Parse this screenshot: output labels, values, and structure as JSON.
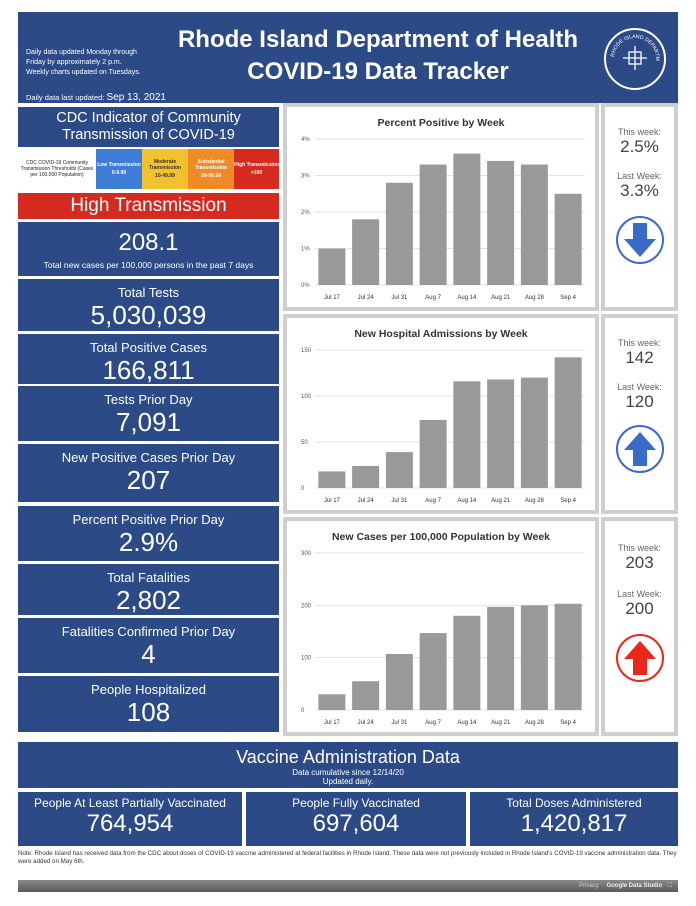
{
  "header": {
    "notes_line1": "Daily data updated Monday through",
    "notes_line2": "Friday by approximately 2 p.m.",
    "notes_line3": "Weekly charts updated on Tuesdays.",
    "last_updated_label": "Daily data last updated:",
    "last_updated_value": "Sep 13, 2021",
    "title_line1": "Rhode Island Department of Health",
    "title_line2": "COVID-19 Data Tracker",
    "seal_text": "RHODE ISLAND DEPARTMENT OF HEALTH"
  },
  "cdc": {
    "title_line1": "CDC Indicator of Community",
    "title_line2": "Transmission of COVID-19",
    "legend_intro": "CDC COVID-19 Community Transmission Thresholds (Cases per 100,000 Population)",
    "levels": [
      {
        "name": "Low Transmission",
        "range": "0-9.99",
        "color": "#3d7dd8"
      },
      {
        "name": "Moderate Transmission",
        "range": "10-49.99",
        "color": "#f2c12e"
      },
      {
        "name": "Substantial Transmission",
        "range": "50-99.99",
        "color": "#f08a24"
      },
      {
        "name": "High Transmission",
        "range": ">100",
        "color": "#d42a1f"
      }
    ],
    "level_banner": "High Transmission",
    "level_color": "#d42a1f"
  },
  "metrics": {
    "rate_value": "208.1",
    "rate_label": "Total new cases per 100,000 persons in the past 7 days",
    "total_tests_label": "Total Tests",
    "total_tests_value": "5,030,039",
    "total_positive_label": "Total Positive Cases",
    "total_positive_value": "166,811",
    "tests_prior_label": "Tests Prior Day",
    "tests_prior_value": "7,091",
    "new_pos_label": "New Positive Cases Prior Day",
    "new_pos_value": "207",
    "pct_pos_label": "Percent Positive Prior Day",
    "pct_pos_value": "2.9%",
    "fatal_label": "Total Fatalities",
    "fatal_value": "2,802",
    "fatal_prior_label": "Fatalities Confirmed Prior Day",
    "fatal_prior_value": "4",
    "hosp_label": "People Hospitalized",
    "hosp_value": "108"
  },
  "side_stats": [
    {
      "this_label": "This week:",
      "this_value": "2.5%",
      "last_label": "Last Week:",
      "last_value": "3.3%",
      "arrow": "down-arrow-icon",
      "arrow_color": "#3b6bc8"
    },
    {
      "this_label": "This week:",
      "this_value": "142",
      "last_label": "Last Week:",
      "last_value": "120",
      "arrow": "up-arrow-icon",
      "arrow_color": "#3b6bc8"
    },
    {
      "this_label": "This week:",
      "this_value": "203",
      "last_label": "Last Week:",
      "last_value": "200",
      "arrow": "up-arrow-icon",
      "arrow_color": "#e8281a"
    }
  ],
  "chart_data": [
    {
      "type": "bar",
      "title": "Percent Positive by Week",
      "categories": [
        "Jul 17",
        "Jul 24",
        "Jul 31",
        "Aug 7",
        "Aug 14",
        "Aug 21",
        "Aug 28",
        "Sep 4"
      ],
      "values": [
        1.0,
        1.8,
        2.8,
        3.3,
        3.6,
        3.4,
        3.3,
        2.5
      ],
      "ylim": [
        0,
        4
      ],
      "yticks": [
        "0%",
        "1%",
        "2%",
        "3%",
        "4%"
      ],
      "grid": true
    },
    {
      "type": "bar",
      "title": "New Hospital Admissions by Week",
      "categories": [
        "Jul 17",
        "Jul 24",
        "Jul 31",
        "Aug 7",
        "Aug 14",
        "Aug 21",
        "Aug 28",
        "Sep 4"
      ],
      "values": [
        18,
        24,
        39,
        74,
        116,
        118,
        120,
        142
      ],
      "ylim": [
        0,
        150
      ],
      "yticks": [
        "0",
        "50",
        "100",
        "150"
      ],
      "grid": true
    },
    {
      "type": "bar",
      "title": "New Cases per 100,000 Population by Week",
      "categories": [
        "Jul 17",
        "Jul 24",
        "Jul 31",
        "Aug 7",
        "Aug 14",
        "Aug 21",
        "Aug 28",
        "Sep 4"
      ],
      "values": [
        30,
        55,
        107,
        147,
        180,
        197,
        200,
        203
      ],
      "ylim": [
        0,
        300
      ],
      "yticks": [
        "0",
        "100",
        "200",
        "300"
      ],
      "grid": true
    }
  ],
  "vaccine": {
    "title": "Vaccine Administration Data",
    "subtitle1": "Data cumulative since 12/14/20",
    "subtitle2": "Updated daily.",
    "partial_label": "People At Least Partially Vaccinated",
    "partial_value": "764,954",
    "full_label": "People Fully Vaccinated",
    "full_value": "697,604",
    "doses_label": "Total Doses Administered",
    "doses_value": "1,420,817"
  },
  "note": "Note: Rhode Island has received data from the CDC about doses of COVID-19 vaccine administered at federal facilities in Rhode Island. These data were not previously included in Rhode Island's COVID-19 vaccine administration data. They were added on May 6th.",
  "footer": {
    "privacy": "Privacy",
    "studio": "Google Data Studio"
  }
}
